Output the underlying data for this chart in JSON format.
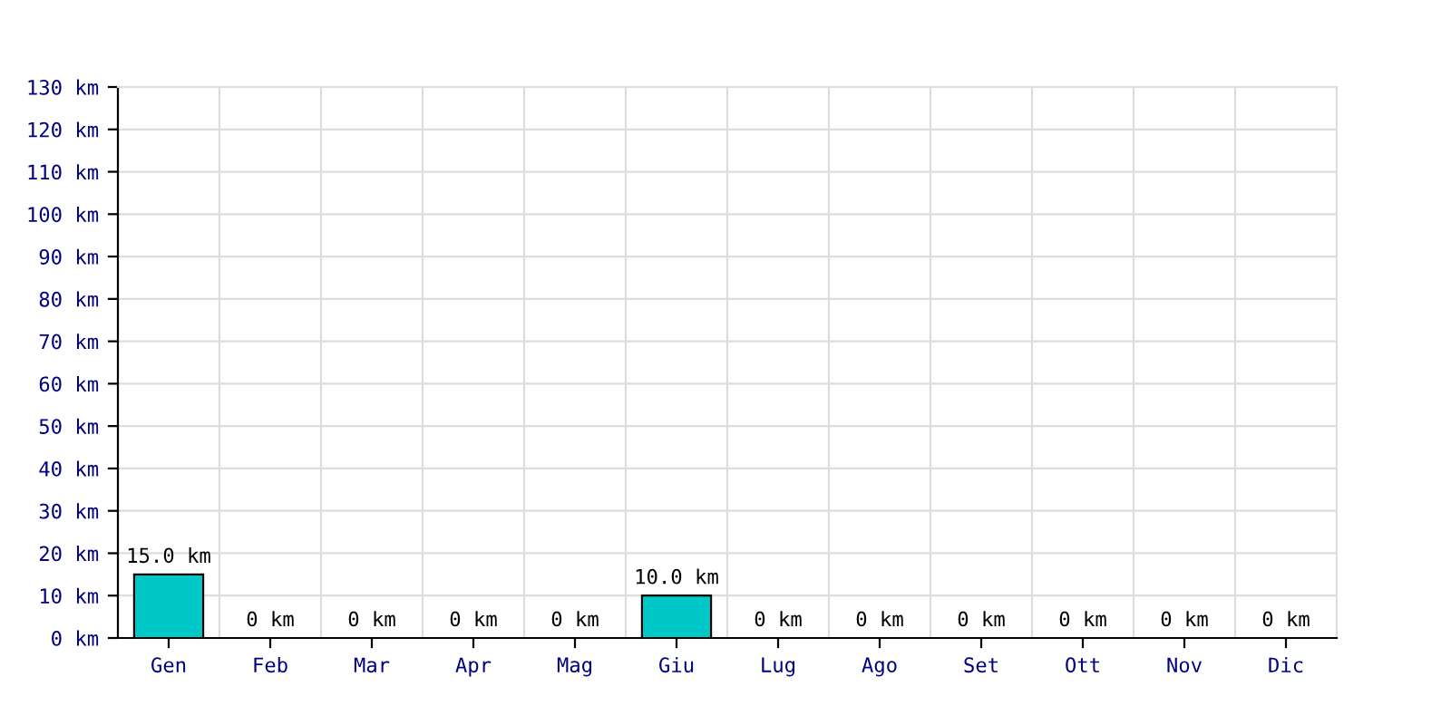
{
  "chart_data": {
    "type": "bar",
    "categories": [
      "Gen",
      "Feb",
      "Mar",
      "Apr",
      "Mag",
      "Giu",
      "Lug",
      "Ago",
      "Set",
      "Ott",
      "Nov",
      "Dic"
    ],
    "values": [
      15.0,
      0,
      0,
      0,
      0,
      10.0,
      0,
      0,
      0,
      0,
      0,
      0
    ],
    "value_labels": [
      "15.0 km",
      "0 km",
      "0 km",
      "0 km",
      "0 km",
      "10.0 km",
      "0 km",
      "0 km",
      "0 km",
      "0 km",
      "0 km",
      "0 km"
    ],
    "color": "#00c8c8",
    "ylim": [
      0,
      130
    ],
    "yticks": [
      {
        "value": 0,
        "label": "0 km"
      },
      {
        "value": 10,
        "label": "10 km"
      },
      {
        "value": 20,
        "label": "20 km"
      },
      {
        "value": 30,
        "label": "30 km"
      },
      {
        "value": 40,
        "label": "40 km"
      },
      {
        "value": 50,
        "label": "50 km"
      },
      {
        "value": 60,
        "label": "60 km"
      },
      {
        "value": 70,
        "label": "70 km"
      },
      {
        "value": 80,
        "label": "80 km"
      },
      {
        "value": 90,
        "label": "90 km"
      },
      {
        "value": 100,
        "label": "100 km"
      },
      {
        "value": 110,
        "label": "110 km"
      },
      {
        "value": 120,
        "label": "120 km"
      },
      {
        "value": 130,
        "label": "130 km"
      }
    ],
    "grid": true
  }
}
